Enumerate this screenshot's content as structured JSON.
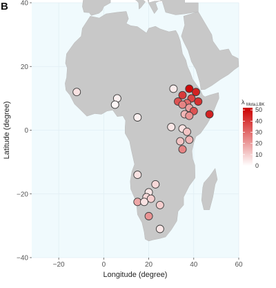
{
  "panel_letter": "B",
  "chart_data": {
    "type": "scatter",
    "title": "",
    "xlabel": "Longitude (degree)",
    "ylabel": "Latitude (degree)",
    "xlim": [
      -32,
      60
    ],
    "ylim": [
      -40,
      40
    ],
    "xticks": [
      -20,
      0,
      20,
      40,
      60
    ],
    "yticks": [
      -40,
      -20,
      0,
      20,
      40
    ],
    "x_tick_labels": [
      "−20",
      "0",
      "20",
      "40",
      "60"
    ],
    "y_tick_labels": [
      "−40",
      "−20",
      "0",
      "20",
      "40"
    ],
    "grid": true,
    "background": "#f0fafd",
    "land_color": "#c8c8c8",
    "legend": {
      "title_main": "λ",
      "title_sub": "Mota,LBK",
      "ticks": [
        50,
        40,
        30,
        20,
        10,
        0
      ],
      "range": [
        0,
        52
      ],
      "color_low": "#ffffff",
      "color_high": "#cc0000",
      "placement": "right"
    },
    "points": [
      {
        "x": -12,
        "y": 12,
        "value": 6
      },
      {
        "x": 6,
        "y": 10,
        "value": 3
      },
      {
        "x": 5,
        "y": 8,
        "value": 2
      },
      {
        "x": 15,
        "y": 4,
        "value": 3
      },
      {
        "x": 31,
        "y": 13,
        "value": 4
      },
      {
        "x": 38,
        "y": 13,
        "value": 50
      },
      {
        "x": 41,
        "y": 12,
        "value": 45
      },
      {
        "x": 35,
        "y": 11,
        "value": 40
      },
      {
        "x": 39,
        "y": 10,
        "value": 38
      },
      {
        "x": 33,
        "y": 9,
        "value": 35
      },
      {
        "x": 37,
        "y": 8.5,
        "value": 30
      },
      {
        "x": 42,
        "y": 9,
        "value": 42
      },
      {
        "x": 35,
        "y": 8,
        "value": 25
      },
      {
        "x": 38,
        "y": 7,
        "value": 20
      },
      {
        "x": 40,
        "y": 6,
        "value": 35
      },
      {
        "x": 36,
        "y": 5,
        "value": 15
      },
      {
        "x": 38,
        "y": 4.5,
        "value": 22
      },
      {
        "x": 47,
        "y": 5,
        "value": 45
      },
      {
        "x": 30,
        "y": 1,
        "value": 5
      },
      {
        "x": 35,
        "y": 0.5,
        "value": 6
      },
      {
        "x": 37,
        "y": -0.5,
        "value": 12
      },
      {
        "x": 38,
        "y": -3,
        "value": 15
      },
      {
        "x": 34,
        "y": -3.5,
        "value": 12
      },
      {
        "x": 35,
        "y": -6,
        "value": 25
      },
      {
        "x": 15,
        "y": -14,
        "value": 6
      },
      {
        "x": 23,
        "y": -17,
        "value": 8
      },
      {
        "x": 20,
        "y": -19.5,
        "value": 5
      },
      {
        "x": 19,
        "y": -21,
        "value": 8
      },
      {
        "x": 21,
        "y": -21.5,
        "value": 10
      },
      {
        "x": 15,
        "y": -22.5,
        "value": 18
      },
      {
        "x": 18,
        "y": -22.5,
        "value": 6
      },
      {
        "x": 25,
        "y": -23.5,
        "value": 10
      },
      {
        "x": 20,
        "y": -27,
        "value": 22
      },
      {
        "x": 25,
        "y": -31,
        "value": 5
      }
    ]
  }
}
